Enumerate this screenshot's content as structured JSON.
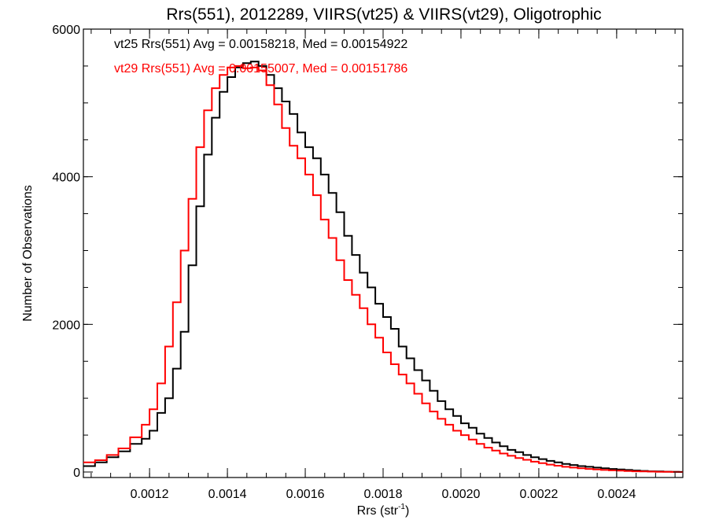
{
  "chart_data": {
    "type": "line",
    "step": true,
    "title": "Rrs(551), 2012289, VIIRS(vt25) & VIIRS(vt29), Oligotrophic",
    "xlabel_main": "Rrs (str",
    "xlabel_sup": "-1",
    "xlabel_close": ")",
    "ylabel": "Number of Observations",
    "xlim": [
      0.00103,
      0.00257
    ],
    "ylim": [
      0,
      6000
    ],
    "xticks": [
      0.0012,
      0.0014,
      0.0016,
      0.0018,
      0.002,
      0.0022,
      0.0024
    ],
    "xtick_labels": [
      "0.0012",
      "0.0014",
      "0.0016",
      "0.0018",
      "0.0020",
      "0.0022",
      "0.0024"
    ],
    "yticks": [
      0,
      2000,
      4000,
      6000
    ],
    "ytick_labels": [
      "0",
      "2000",
      "4000",
      "6000"
    ],
    "grid": false,
    "legend_placement": "top-left",
    "series": [
      {
        "label": "vt25 Rrs(551) Avg = 0.00158218, Med = 0.00154922",
        "color": "#000000",
        "x": [
          0.00103,
          0.00106,
          0.00109,
          0.00112,
          0.00115,
          0.00118,
          0.0012,
          0.00122,
          0.00124,
          0.00126,
          0.00128,
          0.0013,
          0.00132,
          0.00134,
          0.00136,
          0.00138,
          0.0014,
          0.00142,
          0.00144,
          0.00146,
          0.00148,
          0.0015,
          0.00152,
          0.00154,
          0.00156,
          0.00158,
          0.0016,
          0.00162,
          0.00164,
          0.00166,
          0.00168,
          0.0017,
          0.00172,
          0.00174,
          0.00176,
          0.00178,
          0.0018,
          0.00182,
          0.00184,
          0.00186,
          0.00188,
          0.0019,
          0.00192,
          0.00194,
          0.00196,
          0.00198,
          0.002,
          0.00202,
          0.00204,
          0.00206,
          0.00208,
          0.0021,
          0.00212,
          0.00214,
          0.00216,
          0.00218,
          0.0022,
          0.00222,
          0.00224,
          0.00226,
          0.00228,
          0.0023,
          0.00232,
          0.00234,
          0.00236,
          0.00238,
          0.0024,
          0.00242,
          0.00244,
          0.00246,
          0.00248,
          0.0025,
          0.00252,
          0.00254,
          0.00256
        ],
        "values": [
          80,
          130,
          200,
          280,
          380,
          450,
          560,
          800,
          1000,
          1400,
          1900,
          2800,
          3600,
          4300,
          4800,
          5150,
          5350,
          5480,
          5540,
          5560,
          5500,
          5380,
          5200,
          5020,
          4850,
          4600,
          4400,
          4250,
          4030,
          3780,
          3520,
          3200,
          2940,
          2700,
          2500,
          2280,
          2100,
          1940,
          1700,
          1540,
          1380,
          1240,
          1100,
          960,
          850,
          760,
          660,
          600,
          520,
          460,
          400,
          350,
          300,
          270,
          230,
          200,
          175,
          150,
          130,
          110,
          95,
          80,
          70,
          60,
          50,
          42,
          35,
          28,
          20,
          15,
          10,
          7,
          4,
          2,
          1
        ]
      },
      {
        "label": "vt29 Rrs(551) Avg = 0.00155007, Med = 0.00151786",
        "color": "#ff0000",
        "x": [
          0.00103,
          0.00106,
          0.00109,
          0.00112,
          0.00115,
          0.00118,
          0.0012,
          0.00122,
          0.00124,
          0.00126,
          0.00128,
          0.0013,
          0.00132,
          0.00134,
          0.00136,
          0.00138,
          0.0014,
          0.00142,
          0.00144,
          0.00146,
          0.00148,
          0.0015,
          0.00152,
          0.00154,
          0.00156,
          0.00158,
          0.0016,
          0.00162,
          0.00164,
          0.00166,
          0.00168,
          0.0017,
          0.00172,
          0.00174,
          0.00176,
          0.00178,
          0.0018,
          0.00182,
          0.00184,
          0.00186,
          0.00188,
          0.0019,
          0.00192,
          0.00194,
          0.00196,
          0.00198,
          0.002,
          0.00202,
          0.00204,
          0.00206,
          0.00208,
          0.0021,
          0.00212,
          0.00214,
          0.00216,
          0.00218,
          0.0022,
          0.00222,
          0.00224,
          0.00226,
          0.00228,
          0.0023,
          0.00232,
          0.00234,
          0.00236,
          0.00238,
          0.0024,
          0.00242,
          0.00244,
          0.00246,
          0.00248,
          0.0025,
          0.00252,
          0.00254,
          0.00256
        ],
        "values": [
          130,
          160,
          230,
          320,
          470,
          640,
          850,
          1200,
          1700,
          2300,
          3000,
          3700,
          4400,
          4900,
          5200,
          5380,
          5480,
          5500,
          5470,
          5480,
          5440,
          5240,
          4980,
          4660,
          4420,
          4250,
          4030,
          3750,
          3420,
          3170,
          2870,
          2600,
          2400,
          2220,
          2000,
          1820,
          1620,
          1460,
          1320,
          1200,
          1060,
          930,
          820,
          720,
          640,
          560,
          500,
          440,
          380,
          330,
          290,
          250,
          220,
          190,
          165,
          140,
          120,
          100,
          85,
          70,
          60,
          50,
          42,
          35,
          28,
          22,
          18,
          14,
          10,
          7,
          5,
          3,
          2,
          1,
          0
        ]
      }
    ]
  }
}
